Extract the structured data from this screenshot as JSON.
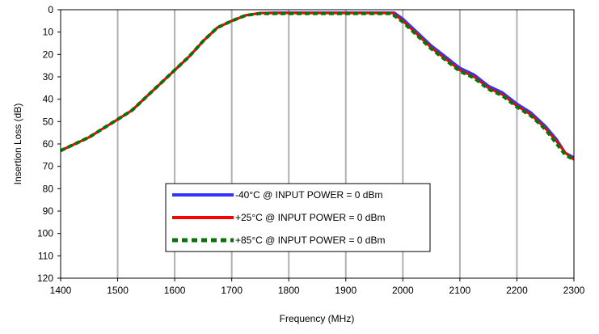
{
  "chart_data": {
    "type": "line",
    "title": "",
    "xlabel": "Frequency (MHz)",
    "ylabel": "Insertion Loss (dB)",
    "xlim": [
      1400,
      2300
    ],
    "ylim": [
      0,
      120
    ],
    "y_inverted": true,
    "x_ticks": [
      1400,
      1500,
      1600,
      1700,
      1800,
      1900,
      2000,
      2100,
      2200,
      2300
    ],
    "y_ticks": [
      0,
      10,
      20,
      30,
      40,
      50,
      60,
      70,
      80,
      90,
      100,
      110,
      120
    ],
    "grid": "vertical",
    "legend_position": "lower-center",
    "series": [
      {
        "name": "-40°C @ INPUT POWER = 0 dBm",
        "color": "#3333ff",
        "style": "solid",
        "x": [
          1400,
          1425,
          1450,
          1475,
          1500,
          1525,
          1550,
          1575,
          1600,
          1625,
          1650,
          1675,
          1700,
          1725,
          1750,
          1775,
          1800,
          1850,
          1900,
          1950,
          1985,
          2000,
          2025,
          2050,
          2075,
          2100,
          2125,
          2150,
          2175,
          2200,
          2225,
          2250,
          2270,
          2285,
          2300
        ],
        "y": [
          63,
          60,
          57,
          53,
          49,
          45,
          39,
          33,
          27,
          21,
          14,
          8,
          5,
          2.5,
          1.5,
          1.3,
          1.3,
          1.3,
          1.3,
          1.3,
          1.3,
          4,
          10,
          16,
          21,
          26,
          29,
          34,
          37,
          42,
          46,
          52,
          58,
          64,
          66
        ]
      },
      {
        "name": "+25°C @ INPUT POWER = 0 dBm",
        "color": "#ff0000",
        "style": "solid",
        "x": [
          1400,
          1425,
          1450,
          1475,
          1500,
          1525,
          1550,
          1575,
          1600,
          1625,
          1650,
          1675,
          1700,
          1725,
          1750,
          1775,
          1800,
          1850,
          1900,
          1950,
          1982,
          2000,
          2025,
          2050,
          2075,
          2100,
          2125,
          2150,
          2175,
          2200,
          2225,
          2250,
          2270,
          2285,
          2300
        ],
        "y": [
          63,
          60,
          57,
          53,
          49,
          45,
          39,
          33,
          27,
          21,
          14,
          8,
          5,
          2.5,
          1.5,
          1.5,
          1.5,
          1.5,
          1.5,
          1.5,
          1.5,
          5,
          11,
          17,
          22,
          27,
          30,
          35,
          38,
          43,
          47,
          53,
          59,
          64,
          67
        ]
      },
      {
        "name": "+85°C @ INPUT POWER = 0 dBm",
        "color": "#007700",
        "style": "dashed",
        "x": [
          1400,
          1425,
          1450,
          1475,
          1500,
          1525,
          1550,
          1575,
          1600,
          1625,
          1650,
          1675,
          1700,
          1725,
          1750,
          1775,
          1800,
          1850,
          1900,
          1950,
          1980,
          2000,
          2025,
          2050,
          2075,
          2100,
          2125,
          2150,
          2175,
          2200,
          2225,
          2250,
          2270,
          2285,
          2300
        ],
        "y": [
          63,
          60,
          57,
          53,
          49,
          45,
          39,
          33,
          27,
          21,
          14,
          8,
          5,
          2.5,
          1.7,
          1.7,
          1.7,
          1.7,
          1.7,
          1.7,
          1.7,
          5.5,
          11.5,
          17.5,
          22.5,
          27.5,
          30.5,
          35.5,
          38.5,
          43.5,
          47.5,
          53.5,
          60,
          65,
          67
        ]
      }
    ]
  }
}
